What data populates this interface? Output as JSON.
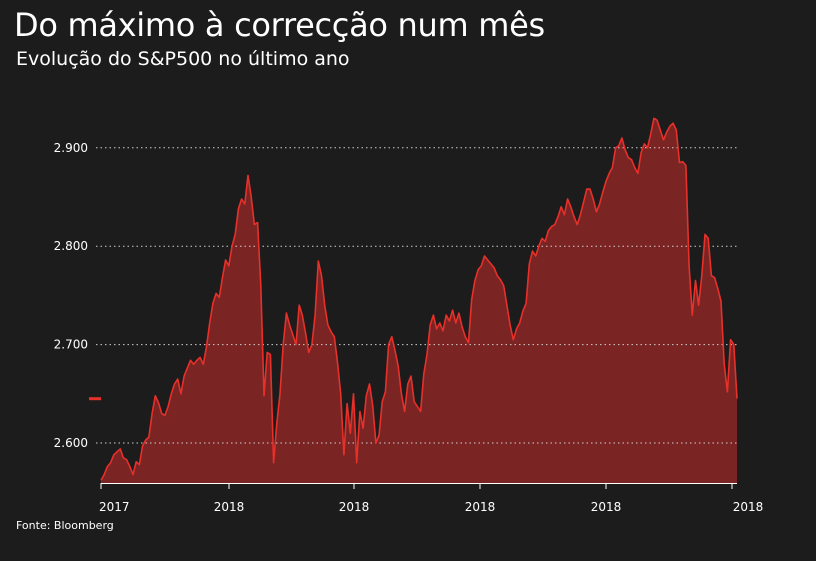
{
  "header": {
    "title": "Do máximo à correcção num mês",
    "subtitle": "Evolução do S&P500 no último ano"
  },
  "footer": {
    "source": "Fonte: Bloomberg"
  },
  "colors": {
    "background": "#1c1c1c",
    "line": "#e8302a",
    "fill": "#7a2424",
    "grid": "#cfcfcf",
    "text": "#ffffff"
  },
  "chart_data": {
    "type": "area",
    "title": "Do máximo à correcção num mês",
    "subtitle": "Evolução do S&P500 no último ano",
    "xlabel": "",
    "ylabel": "",
    "ylim": [
      2560,
      2945
    ],
    "y_ticks": [
      2600,
      2700,
      2800,
      2900
    ],
    "y_tick_labels": [
      "2.600",
      "2.700",
      "2.800",
      "2.900"
    ],
    "x_tick_labels": [
      "2017",
      "2018",
      "2018",
      "2018",
      "2018",
      "2018"
    ],
    "grid": "horizontal-dotted",
    "last_value_marker": 2645,
    "series": [
      {
        "values": [
          2562,
          2568,
          2576,
          2580,
          2588,
          2591,
          2594,
          2585,
          2583,
          2576,
          2568,
          2581,
          2578,
          2597,
          2603,
          2606,
          2630,
          2648,
          2641,
          2630,
          2628,
          2637,
          2650,
          2660,
          2665,
          2650,
          2668,
          2676,
          2684,
          2680,
          2684,
          2687,
          2680,
          2698,
          2722,
          2742,
          2752,
          2748,
          2768,
          2786,
          2780,
          2800,
          2812,
          2838,
          2848,
          2843,
          2872,
          2850,
          2822,
          2824,
          2760,
          2648,
          2692,
          2690,
          2580,
          2620,
          2650,
          2700,
          2732,
          2720,
          2710,
          2700,
          2740,
          2730,
          2712,
          2692,
          2700,
          2730,
          2785,
          2770,
          2740,
          2720,
          2713,
          2708,
          2682,
          2650,
          2588,
          2640,
          2610,
          2650,
          2580,
          2632,
          2615,
          2648,
          2660,
          2638,
          2600,
          2608,
          2642,
          2652,
          2700,
          2708,
          2694,
          2678,
          2650,
          2632,
          2660,
          2668,
          2642,
          2637,
          2632,
          2670,
          2690,
          2720,
          2730,
          2716,
          2722,
          2714,
          2730,
          2724,
          2735,
          2722,
          2732,
          2718,
          2708,
          2702,
          2746,
          2765,
          2776,
          2780,
          2790,
          2786,
          2782,
          2778,
          2770,
          2766,
          2760,
          2740,
          2720,
          2705,
          2716,
          2722,
          2734,
          2742,
          2782,
          2795,
          2790,
          2800,
          2808,
          2805,
          2816,
          2820,
          2822,
          2830,
          2840,
          2832,
          2848,
          2840,
          2830,
          2822,
          2832,
          2845,
          2858,
          2858,
          2848,
          2835,
          2843,
          2855,
          2866,
          2874,
          2880,
          2900,
          2902,
          2910,
          2898,
          2890,
          2888,
          2880,
          2874,
          2895,
          2904,
          2900,
          2914,
          2930,
          2928,
          2918,
          2908,
          2916,
          2922,
          2925,
          2918,
          2885,
          2886,
          2882,
          2780,
          2730,
          2765,
          2740,
          2770,
          2812,
          2808,
          2770,
          2768,
          2757,
          2744,
          2680,
          2652,
          2705,
          2700,
          2645
        ]
      }
    ]
  }
}
